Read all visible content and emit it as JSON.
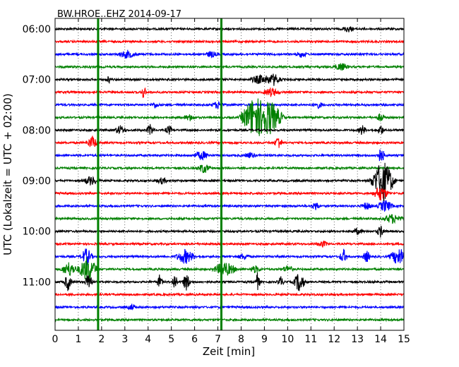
{
  "chart_data": {
    "type": "line",
    "title": "BW.HROE..EHZ 2014-09-17",
    "xlabel": "Zeit  [min]",
    "ylabel": "UTC (Lokalzeit = UTC + 02:00)",
    "xlim": [
      0,
      15
    ],
    "x_ticks": [
      0,
      1,
      2,
      3,
      4,
      5,
      6,
      7,
      8,
      9,
      10,
      11,
      12,
      13,
      14,
      15
    ],
    "y_ticks": [
      {
        "label": "06:00",
        "row": 0
      },
      {
        "label": "07:00",
        "row": 4
      },
      {
        "label": "08:00",
        "row": 8
      },
      {
        "label": "09:00",
        "row": 12
      },
      {
        "label": "10:00",
        "row": 16
      },
      {
        "label": "11:00",
        "row": 20
      }
    ],
    "rows": 24,
    "row_minutes": 15,
    "grid": true,
    "trace_colors": [
      "#000000",
      "#ff0000",
      "#0000ff",
      "#008000"
    ],
    "vertical_markers": [
      {
        "x": 1.85,
        "color": "#008000"
      },
      {
        "x": 7.15,
        "color": "#008000"
      }
    ],
    "traces": [
      {
        "row": 0,
        "events": [
          {
            "x": 12.6,
            "amp": 4,
            "dur": 0.3
          }
        ]
      },
      {
        "row": 1,
        "events": []
      },
      {
        "row": 2,
        "events": [
          {
            "x": 3.1,
            "amp": 5,
            "dur": 0.5
          },
          {
            "x": 6.7,
            "amp": 4,
            "dur": 0.3
          },
          {
            "x": 10.6,
            "amp": 4,
            "dur": 0.3
          }
        ]
      },
      {
        "row": 3,
        "events": [
          {
            "x": 12.3,
            "amp": 5,
            "dur": 0.4
          }
        ]
      },
      {
        "row": 4,
        "events": [
          {
            "x": 2.3,
            "amp": 5,
            "dur": 0.1
          },
          {
            "x": 8.8,
            "amp": 6,
            "dur": 0.5
          },
          {
            "x": 9.4,
            "amp": 8,
            "dur": 0.4
          }
        ]
      },
      {
        "row": 5,
        "events": [
          {
            "x": 3.8,
            "amp": 8,
            "dur": 0.15
          },
          {
            "x": 9.3,
            "amp": 6,
            "dur": 0.4
          }
        ]
      },
      {
        "row": 6,
        "events": [
          {
            "x": 4.3,
            "amp": 4,
            "dur": 0.2
          },
          {
            "x": 7.0,
            "amp": 5,
            "dur": 0.3
          },
          {
            "x": 11.3,
            "amp": 4,
            "dur": 0.3
          }
        ]
      },
      {
        "row": 7,
        "events": [
          {
            "x": 5.8,
            "amp": 4,
            "dur": 0.3
          },
          {
            "x": 8.5,
            "amp": 28,
            "dur": 0.6
          },
          {
            "x": 9.2,
            "amp": 26,
            "dur": 0.7
          },
          {
            "x": 14.0,
            "amp": 6,
            "dur": 0.2
          }
        ]
      },
      {
        "row": 8,
        "events": [
          {
            "x": 2.8,
            "amp": 6,
            "dur": 0.3
          },
          {
            "x": 4.1,
            "amp": 8,
            "dur": 0.2
          },
          {
            "x": 4.9,
            "amp": 6,
            "dur": 0.2
          },
          {
            "x": 13.2,
            "amp": 7,
            "dur": 0.2
          },
          {
            "x": 14.0,
            "amp": 8,
            "dur": 0.15
          }
        ]
      },
      {
        "row": 9,
        "events": [
          {
            "x": 1.6,
            "amp": 9,
            "dur": 0.3
          },
          {
            "x": 9.6,
            "amp": 10,
            "dur": 0.2
          }
        ]
      },
      {
        "row": 10,
        "events": [
          {
            "x": 6.3,
            "amp": 6,
            "dur": 0.4
          },
          {
            "x": 8.4,
            "amp": 4,
            "dur": 0.3
          },
          {
            "x": 14.0,
            "amp": 10,
            "dur": 0.25
          }
        ]
      },
      {
        "row": 11,
        "events": [
          {
            "x": 6.4,
            "amp": 7,
            "dur": 0.3
          }
        ]
      },
      {
        "row": 12,
        "events": [
          {
            "x": 1.55,
            "amp": 6,
            "dur": 0.4
          },
          {
            "x": 4.6,
            "amp": 4,
            "dur": 0.3
          },
          {
            "x": 14.1,
            "amp": 30,
            "dur": 0.6
          }
        ]
      },
      {
        "row": 13,
        "events": [
          {
            "x": 14.0,
            "amp": 10,
            "dur": 0.4
          }
        ]
      },
      {
        "row": 14,
        "events": [
          {
            "x": 11.2,
            "amp": 6,
            "dur": 0.2
          },
          {
            "x": 13.4,
            "amp": 5,
            "dur": 0.3
          },
          {
            "x": 14.2,
            "amp": 8,
            "dur": 0.4
          }
        ]
      },
      {
        "row": 15,
        "events": [
          {
            "x": 14.5,
            "amp": 6,
            "dur": 0.5
          }
        ]
      },
      {
        "row": 16,
        "events": [
          {
            "x": 13.0,
            "amp": 4,
            "dur": 0.3
          },
          {
            "x": 14.0,
            "amp": 8,
            "dur": 0.2
          }
        ]
      },
      {
        "row": 17,
        "events": [
          {
            "x": 11.5,
            "amp": 4,
            "dur": 0.3
          }
        ]
      },
      {
        "row": 18,
        "events": [
          {
            "x": 1.35,
            "amp": 12,
            "dur": 0.3
          },
          {
            "x": 5.6,
            "amp": 10,
            "dur": 0.5
          },
          {
            "x": 8.1,
            "amp": 4,
            "dur": 0.3
          },
          {
            "x": 12.4,
            "amp": 10,
            "dur": 0.2
          },
          {
            "x": 13.4,
            "amp": 8,
            "dur": 0.2
          },
          {
            "x": 14.8,
            "amp": 12,
            "dur": 0.5
          }
        ]
      },
      {
        "row": 19,
        "events": [
          {
            "x": 0.6,
            "amp": 10,
            "dur": 0.4
          },
          {
            "x": 1.4,
            "amp": 18,
            "dur": 0.5
          },
          {
            "x": 7.3,
            "amp": 10,
            "dur": 0.6
          },
          {
            "x": 8.6,
            "amp": 5,
            "dur": 0.3
          },
          {
            "x": 10.0,
            "amp": 5,
            "dur": 0.3
          }
        ]
      },
      {
        "row": 20,
        "events": [
          {
            "x": 0.55,
            "amp": 12,
            "dur": 0.2
          },
          {
            "x": 1.45,
            "amp": 14,
            "dur": 0.2
          },
          {
            "x": 4.5,
            "amp": 10,
            "dur": 0.15
          },
          {
            "x": 5.15,
            "amp": 12,
            "dur": 0.15
          },
          {
            "x": 5.65,
            "amp": 12,
            "dur": 0.2
          },
          {
            "x": 8.7,
            "amp": 12,
            "dur": 0.15
          },
          {
            "x": 9.7,
            "amp": 8,
            "dur": 0.15
          },
          {
            "x": 10.5,
            "amp": 14,
            "dur": 0.3
          }
        ]
      },
      {
        "row": 21,
        "events": []
      },
      {
        "row": 22,
        "events": [
          {
            "x": 3.3,
            "amp": 4,
            "dur": 0.2
          }
        ]
      },
      {
        "row": 23,
        "events": []
      }
    ]
  }
}
